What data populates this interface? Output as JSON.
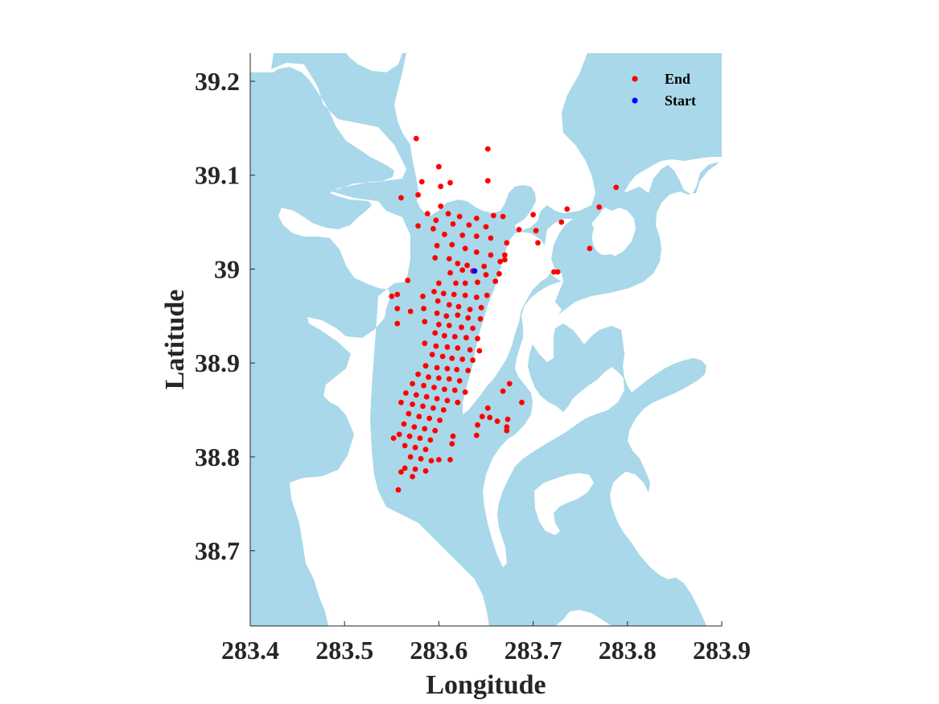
{
  "chart_data": {
    "type": "scatter",
    "xlabel": "Longitude",
    "ylabel": "Latitude",
    "xlim": [
      283.4,
      283.9
    ],
    "ylim": [
      38.62,
      39.23
    ],
    "xticks": [
      "283.4",
      "283.5",
      "283.6",
      "283.7",
      "283.8",
      "283.9"
    ],
    "yticks": [
      "38.7",
      "38.8",
      "38.9",
      "39",
      "39.1",
      "39.2"
    ],
    "grid": false,
    "legend_position": "top-right",
    "colors": {
      "water": "#a8d8ea",
      "land": "#ffffff",
      "end": "#ff0000",
      "start": "#0000ff"
    },
    "series": [
      {
        "name": "End",
        "color": "#ff0000",
        "points": [
          [
            283.576,
            39.139
          ],
          [
            283.652,
            39.128
          ],
          [
            283.6,
            39.109
          ],
          [
            283.652,
            39.094
          ],
          [
            283.582,
            39.093
          ],
          [
            283.602,
            39.088
          ],
          [
            283.612,
            39.092
          ],
          [
            283.56,
            39.076
          ],
          [
            283.578,
            39.079
          ],
          [
            283.788,
            39.087
          ],
          [
            283.602,
            39.067
          ],
          [
            283.61,
            39.059
          ],
          [
            283.622,
            39.056
          ],
          [
            283.64,
            39.054
          ],
          [
            283.658,
            39.057
          ],
          [
            283.668,
            39.056
          ],
          [
            283.7,
            39.058
          ],
          [
            283.736,
            39.064
          ],
          [
            283.77,
            39.066
          ],
          [
            283.588,
            39.059
          ],
          [
            283.597,
            39.052
          ],
          [
            283.615,
            39.048
          ],
          [
            283.632,
            39.047
          ],
          [
            283.65,
            39.045
          ],
          [
            283.685,
            39.042
          ],
          [
            283.703,
            39.041
          ],
          [
            283.73,
            39.05
          ],
          [
            283.578,
            39.046
          ],
          [
            283.594,
            39.043
          ],
          [
            283.606,
            39.037
          ],
          [
            283.625,
            39.036
          ],
          [
            283.64,
            39.035
          ],
          [
            283.655,
            39.033
          ],
          [
            283.672,
            39.028
          ],
          [
            283.705,
            39.028
          ],
          [
            283.76,
            39.022
          ],
          [
            283.598,
            39.025
          ],
          [
            283.614,
            39.026
          ],
          [
            283.628,
            39.022
          ],
          [
            283.64,
            39.018
          ],
          [
            283.655,
            39.015
          ],
          [
            283.67,
            39.015
          ],
          [
            283.596,
            39.012
          ],
          [
            283.611,
            39.011
          ],
          [
            283.62,
            39.006
          ],
          [
            283.63,
            39.004
          ],
          [
            283.648,
            39.003
          ],
          [
            283.665,
            39.008
          ],
          [
            283.67,
            39.01
          ],
          [
            283.612,
            38.996
          ],
          [
            283.625,
            38.999
          ],
          [
            283.636,
            38.998
          ],
          [
            283.65,
            38.994
          ],
          [
            283.664,
            38.995
          ],
          [
            283.722,
            38.997
          ],
          [
            283.726,
            38.997
          ],
          [
            283.567,
            38.988
          ],
          [
            283.6,
            38.985
          ],
          [
            283.618,
            38.985
          ],
          [
            283.628,
            38.985
          ],
          [
            283.641,
            38.986
          ],
          [
            283.66,
            38.987
          ],
          [
            283.595,
            38.976
          ],
          [
            283.605,
            38.974
          ],
          [
            283.616,
            38.973
          ],
          [
            283.628,
            38.972
          ],
          [
            283.64,
            38.97
          ],
          [
            283.651,
            38.972
          ],
          [
            283.556,
            38.973
          ],
          [
            283.55,
            38.971
          ],
          [
            283.583,
            38.971
          ],
          [
            283.599,
            38.966
          ],
          [
            283.611,
            38.962
          ],
          [
            283.621,
            38.96
          ],
          [
            283.633,
            38.957
          ],
          [
            283.645,
            38.959
          ],
          [
            283.584,
            38.958
          ],
          [
            283.598,
            38.953
          ],
          [
            283.608,
            38.95
          ],
          [
            283.62,
            38.951
          ],
          [
            283.631,
            38.948
          ],
          [
            283.644,
            38.947
          ],
          [
            283.556,
            38.958
          ],
          [
            283.57,
            38.955
          ],
          [
            283.585,
            38.944
          ],
          [
            283.6,
            38.941
          ],
          [
            283.611,
            38.94
          ],
          [
            283.624,
            38.938
          ],
          [
            283.636,
            38.937
          ],
          [
            283.556,
            38.942
          ],
          [
            283.596,
            38.932
          ],
          [
            283.606,
            38.929
          ],
          [
            283.617,
            38.928
          ],
          [
            283.629,
            38.927
          ],
          [
            283.641,
            38.926
          ],
          [
            283.585,
            38.921
          ],
          [
            283.597,
            38.918
          ],
          [
            283.609,
            38.917
          ],
          [
            283.62,
            38.916
          ],
          [
            283.633,
            38.914
          ],
          [
            283.643,
            38.913
          ],
          [
            283.593,
            38.909
          ],
          [
            283.604,
            38.907
          ],
          [
            283.614,
            38.905
          ],
          [
            283.625,
            38.904
          ],
          [
            283.636,
            38.903
          ],
          [
            283.586,
            38.897
          ],
          [
            283.598,
            38.895
          ],
          [
            283.609,
            38.894
          ],
          [
            283.619,
            38.893
          ],
          [
            283.631,
            38.892
          ],
          [
            283.578,
            38.888
          ],
          [
            283.589,
            38.885
          ],
          [
            283.6,
            38.884
          ],
          [
            283.611,
            38.883
          ],
          [
            283.622,
            38.881
          ],
          [
            283.572,
            38.878
          ],
          [
            283.584,
            38.876
          ],
          [
            283.595,
            38.874
          ],
          [
            283.606,
            38.872
          ],
          [
            283.617,
            38.871
          ],
          [
            283.628,
            38.869
          ],
          [
            283.668,
            38.87
          ],
          [
            283.675,
            38.878
          ],
          [
            283.688,
            38.858
          ],
          [
            283.565,
            38.868
          ],
          [
            283.576,
            38.866
          ],
          [
            283.587,
            38.864
          ],
          [
            283.598,
            38.862
          ],
          [
            283.609,
            38.86
          ],
          [
            283.62,
            38.858
          ],
          [
            283.56,
            38.858
          ],
          [
            283.572,
            38.856
          ],
          [
            283.583,
            38.854
          ],
          [
            283.594,
            38.852
          ],
          [
            283.605,
            38.85
          ],
          [
            283.652,
            38.852
          ],
          [
            283.568,
            38.846
          ],
          [
            283.579,
            38.843
          ],
          [
            283.59,
            38.841
          ],
          [
            283.601,
            38.839
          ],
          [
            283.646,
            38.843
          ],
          [
            283.654,
            38.842
          ],
          [
            283.662,
            38.838
          ],
          [
            283.673,
            38.84
          ],
          [
            283.641,
            38.834
          ],
          [
            283.563,
            38.835
          ],
          [
            283.574,
            38.832
          ],
          [
            283.585,
            38.83
          ],
          [
            283.596,
            38.828
          ],
          [
            283.672,
            38.832
          ],
          [
            283.672,
            38.828
          ],
          [
            283.558,
            38.824
          ],
          [
            283.569,
            38.822
          ],
          [
            283.58,
            38.82
          ],
          [
            283.591,
            38.818
          ],
          [
            283.615,
            38.822
          ],
          [
            283.64,
            38.823
          ],
          [
            283.552,
            38.82
          ],
          [
            283.564,
            38.812
          ],
          [
            283.575,
            38.81
          ],
          [
            283.586,
            38.808
          ],
          [
            283.614,
            38.814
          ],
          [
            283.57,
            38.8
          ],
          [
            283.581,
            38.798
          ],
          [
            283.592,
            38.796
          ],
          [
            283.6,
            38.797
          ],
          [
            283.612,
            38.797
          ],
          [
            283.564,
            38.788
          ],
          [
            283.575,
            38.787
          ],
          [
            283.586,
            38.785
          ],
          [
            283.56,
            38.784
          ],
          [
            283.572,
            38.779
          ],
          [
            283.557,
            38.765
          ]
        ]
      },
      {
        "name": "Start",
        "color": "#0000ff",
        "points": [
          [
            283.638,
            38.998
          ]
        ]
      }
    ]
  }
}
